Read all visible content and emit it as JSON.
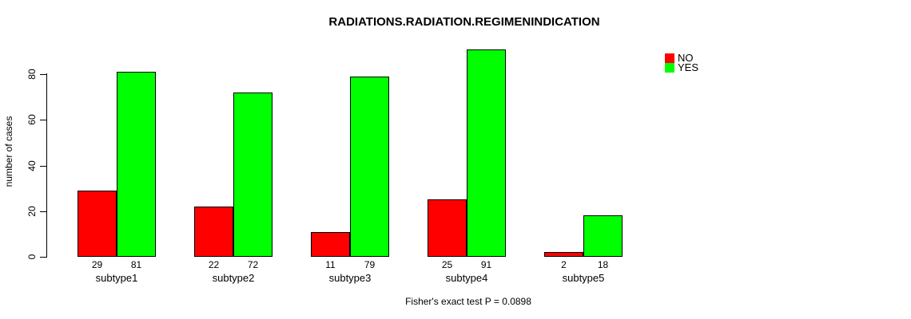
{
  "chart_data": {
    "type": "bar",
    "title": "RADIATIONS.RADIATION.REGIMENINDICATION",
    "ylabel": "number of cases",
    "xlabel": "Fisher's exact test P = 0.0898",
    "categories": [
      "subtype1",
      "subtype2",
      "subtype3",
      "subtype4",
      "subtype5"
    ],
    "series": [
      {
        "name": "NO",
        "color": "#ff0000",
        "values": [
          29,
          22,
          11,
          25,
          2
        ]
      },
      {
        "name": "YES",
        "color": "#00ff00",
        "values": [
          81,
          72,
          79,
          91,
          18
        ]
      }
    ],
    "bar_value_labels": [
      [
        29,
        81
      ],
      [
        22,
        72
      ],
      [
        11,
        79
      ],
      [
        25,
        91
      ],
      [
        2,
        18
      ]
    ],
    "yticks": [
      0,
      20,
      40,
      60,
      80
    ],
    "ylim": [
      0,
      91
    ],
    "grid": false,
    "legend_position": "top-right",
    "legend": [
      "NO",
      "YES"
    ],
    "colors": {
      "no": "#ff0000",
      "yes": "#00ff00",
      "axis": "#000000",
      "background": "#ffffff"
    }
  }
}
